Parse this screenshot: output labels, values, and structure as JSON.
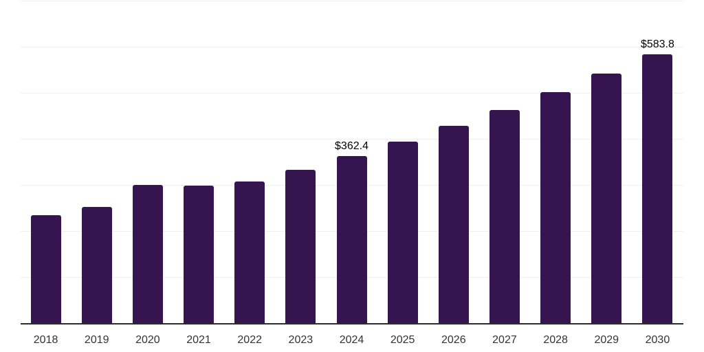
{
  "chart_data": {
    "type": "bar",
    "title": "",
    "xlabel": "",
    "ylabel": "",
    "categories": [
      "2018",
      "2019",
      "2020",
      "2021",
      "2022",
      "2023",
      "2024",
      "2025",
      "2026",
      "2027",
      "2028",
      "2029",
      "2030"
    ],
    "values": [
      234.2,
      252.6,
      300.3,
      297.8,
      307.3,
      333.6,
      362.4,
      394.7,
      427.9,
      463.3,
      501.6,
      541.9,
      583.8
    ],
    "data_labels": {
      "2024": "$362.4",
      "2030": "$583.8"
    },
    "ylim": [
      0,
      700
    ],
    "grid_step": 100,
    "grid": true,
    "legend_position": "none",
    "colors": {
      "bar": "#361450",
      "gridline": "#f0f0f0",
      "axis_line": "#2b2b2b",
      "tick_label": "#333333",
      "data_label": "#000000",
      "background": "#ffffff"
    }
  }
}
